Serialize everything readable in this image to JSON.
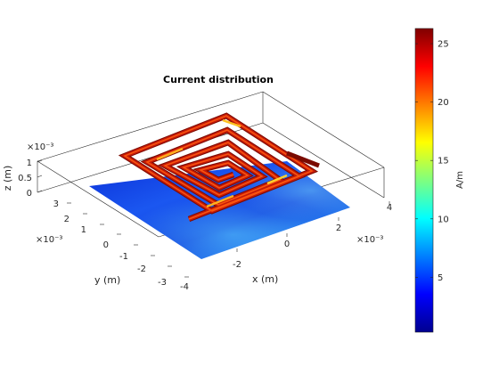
{
  "chart_data": {
    "type": "surface-3d",
    "title": "Current distribution",
    "xlabel": "x (m)",
    "ylabel": "y (m)",
    "zlabel": "z (m)",
    "x_exponent": "×10⁻³",
    "y_exponent": "×10⁻³",
    "z_exponent": "×10⁻³",
    "x_ticks": [
      "-2",
      "0",
      "2",
      "4"
    ],
    "y_ticks": [
      "3",
      "2",
      "1",
      "0",
      "-1",
      "-2",
      "-3",
      "-4"
    ],
    "z_ticks": [
      "1",
      "0.5",
      "0"
    ],
    "xlim": [
      -4,
      4
    ],
    "ylim": [
      -4,
      3
    ],
    "zlim": [
      0,
      1
    ],
    "colormap": "jet",
    "colorbar": {
      "label": "A/m",
      "ticks": [
        "25",
        "20",
        "15",
        "10",
        "5"
      ],
      "range": [
        0.3,
        26.3
      ]
    },
    "objects": [
      {
        "name": "ground plane",
        "shape": "rectangle",
        "z": 0,
        "current_level": "low"
      },
      {
        "name": "spiral antenna",
        "shape": "rectangular spiral",
        "z": 1,
        "current_level": "high"
      }
    ]
  }
}
